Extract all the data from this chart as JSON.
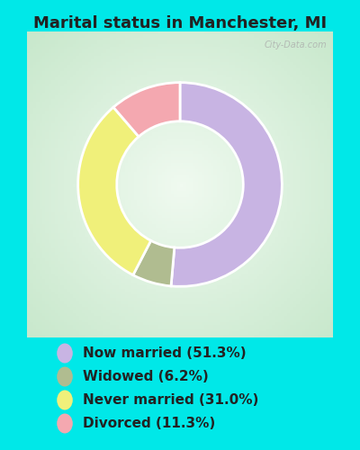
{
  "title": "Marital status in Manchester, MI",
  "values": [
    51.3,
    6.2,
    31.0,
    11.3
  ],
  "colors": [
    "#c8b4e3",
    "#b0bc90",
    "#f0f07a",
    "#f4a8b0"
  ],
  "background_outer": "#00e8e8",
  "legend_labels": [
    "Now married (51.3%)",
    "Widowed (6.2%)",
    "Never married (31.0%)",
    "Divorced (11.3%)"
  ],
  "legend_colors": [
    "#c8b4e3",
    "#b0bc90",
    "#f0f07a",
    "#f4a8b0"
  ],
  "title_fontsize": 13,
  "legend_fontsize": 11,
  "startangle": 90,
  "watermark": "City-Data.com",
  "chart_bg_top": "#e8f5e8",
  "chart_bg_bottom": "#c8e8d0"
}
